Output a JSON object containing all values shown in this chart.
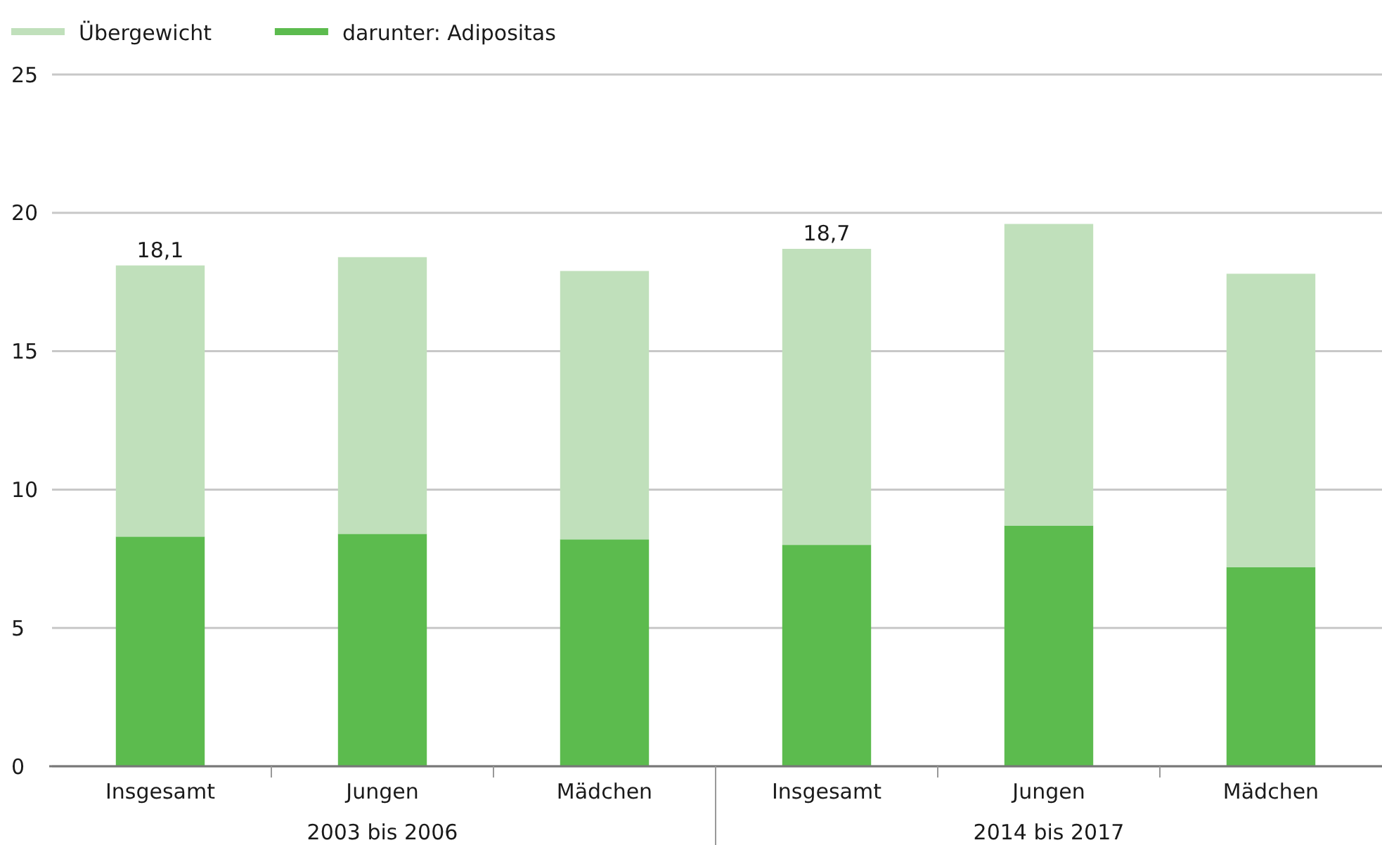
{
  "chart_data": {
    "type": "bar",
    "stacked": true,
    "categories": [
      "Insgesamt",
      "Jungen",
      "Mädchen",
      "Insgesamt",
      "Jungen",
      "Mädchen"
    ],
    "series": [
      {
        "name": "darunter: Adipositas",
        "color": "#5cbb4e",
        "values": [
          8.3,
          8.4,
          8.2,
          8.0,
          8.7,
          7.2
        ]
      },
      {
        "name": "Übergewicht",
        "color": "#c0e0bb",
        "values": [
          9.8,
          10.0,
          9.7,
          10.7,
          10.9,
          10.6
        ]
      }
    ],
    "totals": [
      "18,1",
      null,
      null,
      "18,7",
      null,
      null
    ],
    "ylim": [
      0,
      25
    ],
    "yticks": [
      0,
      5,
      10,
      15,
      20,
      25
    ],
    "grid": "y",
    "legend": "top left",
    "annotations": [
      "2003 bis 2006",
      "2014 bis 2017"
    ]
  }
}
